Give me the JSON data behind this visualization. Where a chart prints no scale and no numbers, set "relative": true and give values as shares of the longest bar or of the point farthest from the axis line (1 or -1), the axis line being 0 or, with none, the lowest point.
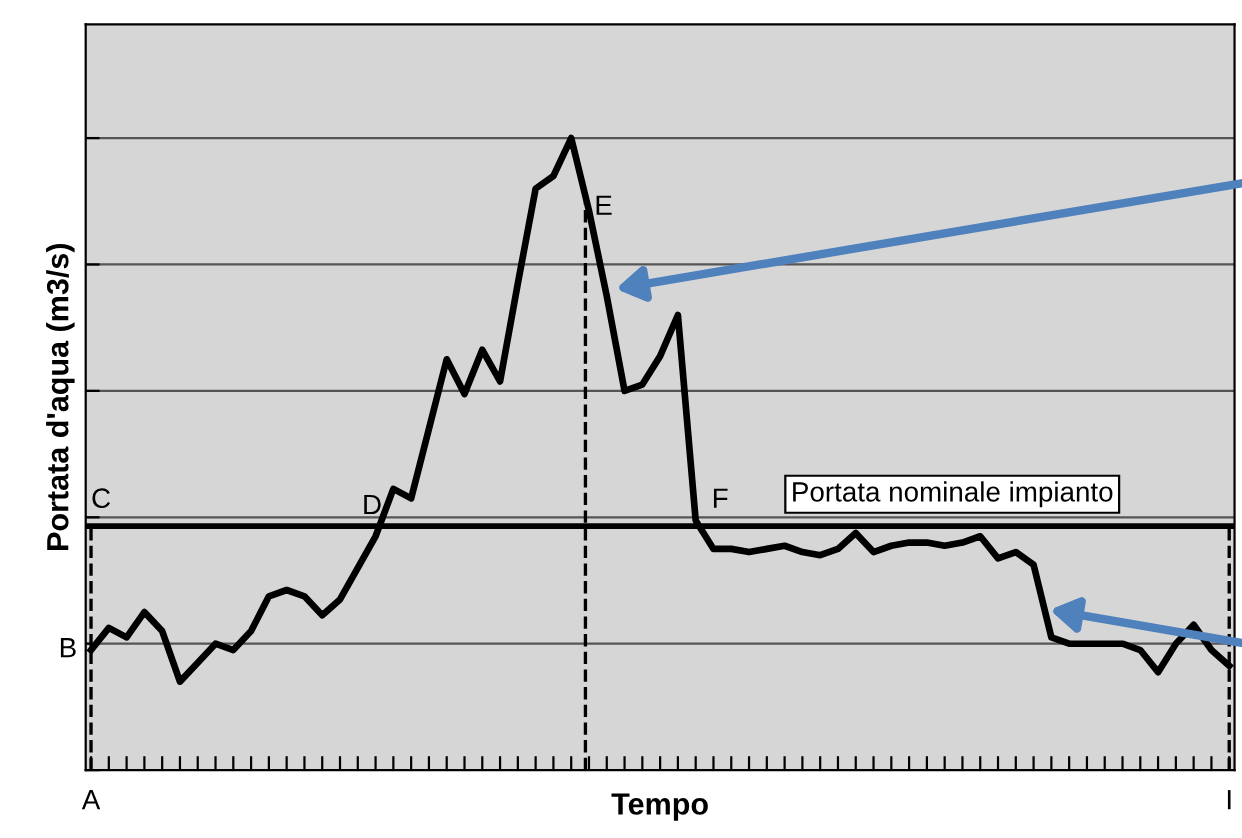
{
  "chart_data": {
    "type": "line",
    "relative": true,
    "xlabel": "Tempo",
    "ylabel": "Portata d'aqua (m3/s)",
    "categories": [
      null,
      null,
      null,
      null,
      null,
      null,
      null,
      null,
      null,
      null,
      null,
      null,
      null,
      null,
      null,
      null,
      null,
      null,
      null,
      null,
      null,
      null,
      null,
      null,
      null,
      null,
      null,
      null,
      null,
      null,
      null,
      null,
      null,
      null,
      null,
      null,
      null,
      null,
      null,
      null,
      null,
      null,
      null,
      null,
      null,
      null,
      null,
      null,
      null,
      null,
      null,
      null,
      null,
      null,
      null,
      null,
      null,
      null,
      null,
      null,
      null,
      null,
      null,
      null,
      null
    ],
    "series": [
      {
        "color": "#000000",
        "values": [
          0.19,
          0.225,
          0.21,
          0.25,
          0.22,
          0.14,
          0.17,
          0.2,
          0.19,
          0.22,
          0.275,
          0.285,
          0.275,
          0.245,
          0.27,
          0.32,
          0.37,
          0.445,
          0.43,
          0.54,
          0.65,
          0.595,
          0.665,
          0.615,
          0.77,
          0.92,
          0.94,
          1,
          0.885,
          0.75,
          0.6,
          0.61,
          0.655,
          0.72,
          0.395,
          0.35,
          0.35,
          0.345,
          0.35,
          0.355,
          0.345,
          0.34,
          0.35,
          0.375,
          0.345,
          0.355,
          0.36,
          0.36,
          0.355,
          0.36,
          0.37,
          0.335,
          0.345,
          0.325,
          0.21,
          0.2,
          0.2,
          0.2,
          0.2,
          0.19,
          0.155,
          0.2,
          0.23,
          0.19,
          0.165
        ]
      }
    ],
    "ref_lines": [
      {
        "axis": "y",
        "value": 0.386,
        "label": "Portata nominale impianto",
        "color": "#000000",
        "line_style": "solid"
      }
    ],
    "annotations": [
      "A",
      "B",
      "C",
      "D",
      "E",
      "F",
      "I"
    ],
    "grid": "y",
    "marker": "none",
    "line_style": "solid",
    "tick_labels": false
  }
}
